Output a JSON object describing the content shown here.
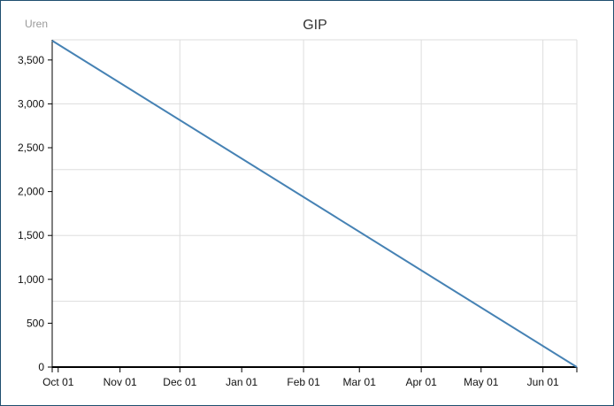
{
  "colors": {
    "line": "#4682b4",
    "grid": "#dddddd",
    "axis": "#000000"
  },
  "chart_data": {
    "type": "line",
    "title": "GIP",
    "ylabel": "Uren",
    "xlabel": "",
    "ylim": [
      0,
      3730
    ],
    "xlim": [
      "2016-09-28",
      "2017-06-18"
    ],
    "y_ticks": [
      0,
      500,
      1000,
      1500,
      2000,
      2500,
      3000,
      3500
    ],
    "y_tick_labels": [
      "0",
      "500",
      "1,000",
      "1,500",
      "2,000",
      "2,500",
      "3,000",
      "3,500"
    ],
    "x_ticks": [
      "2016-10-01",
      "2016-11-01",
      "2016-12-01",
      "2017-01-01",
      "2017-02-01",
      "2017-03-01",
      "2017-04-01",
      "2017-05-01",
      "2017-06-01"
    ],
    "x_tick_labels": [
      "Oct 01",
      "Nov 01",
      "Dec 01",
      "Jan 01",
      "Feb 01",
      "Mar 01",
      "Apr 01",
      "May 01",
      "Jun 01"
    ],
    "y_grid": [
      750,
      1500,
      2250,
      3000
    ],
    "x_grid": [
      "2016-12-01",
      "2017-02-01",
      "2017-04-01",
      "2017-06-01"
    ],
    "series": [
      {
        "x": [
          "2016-09-28",
          "2017-06-18"
        ],
        "y": [
          3720,
          0
        ]
      }
    ],
    "grid": true,
    "legend": "none"
  }
}
